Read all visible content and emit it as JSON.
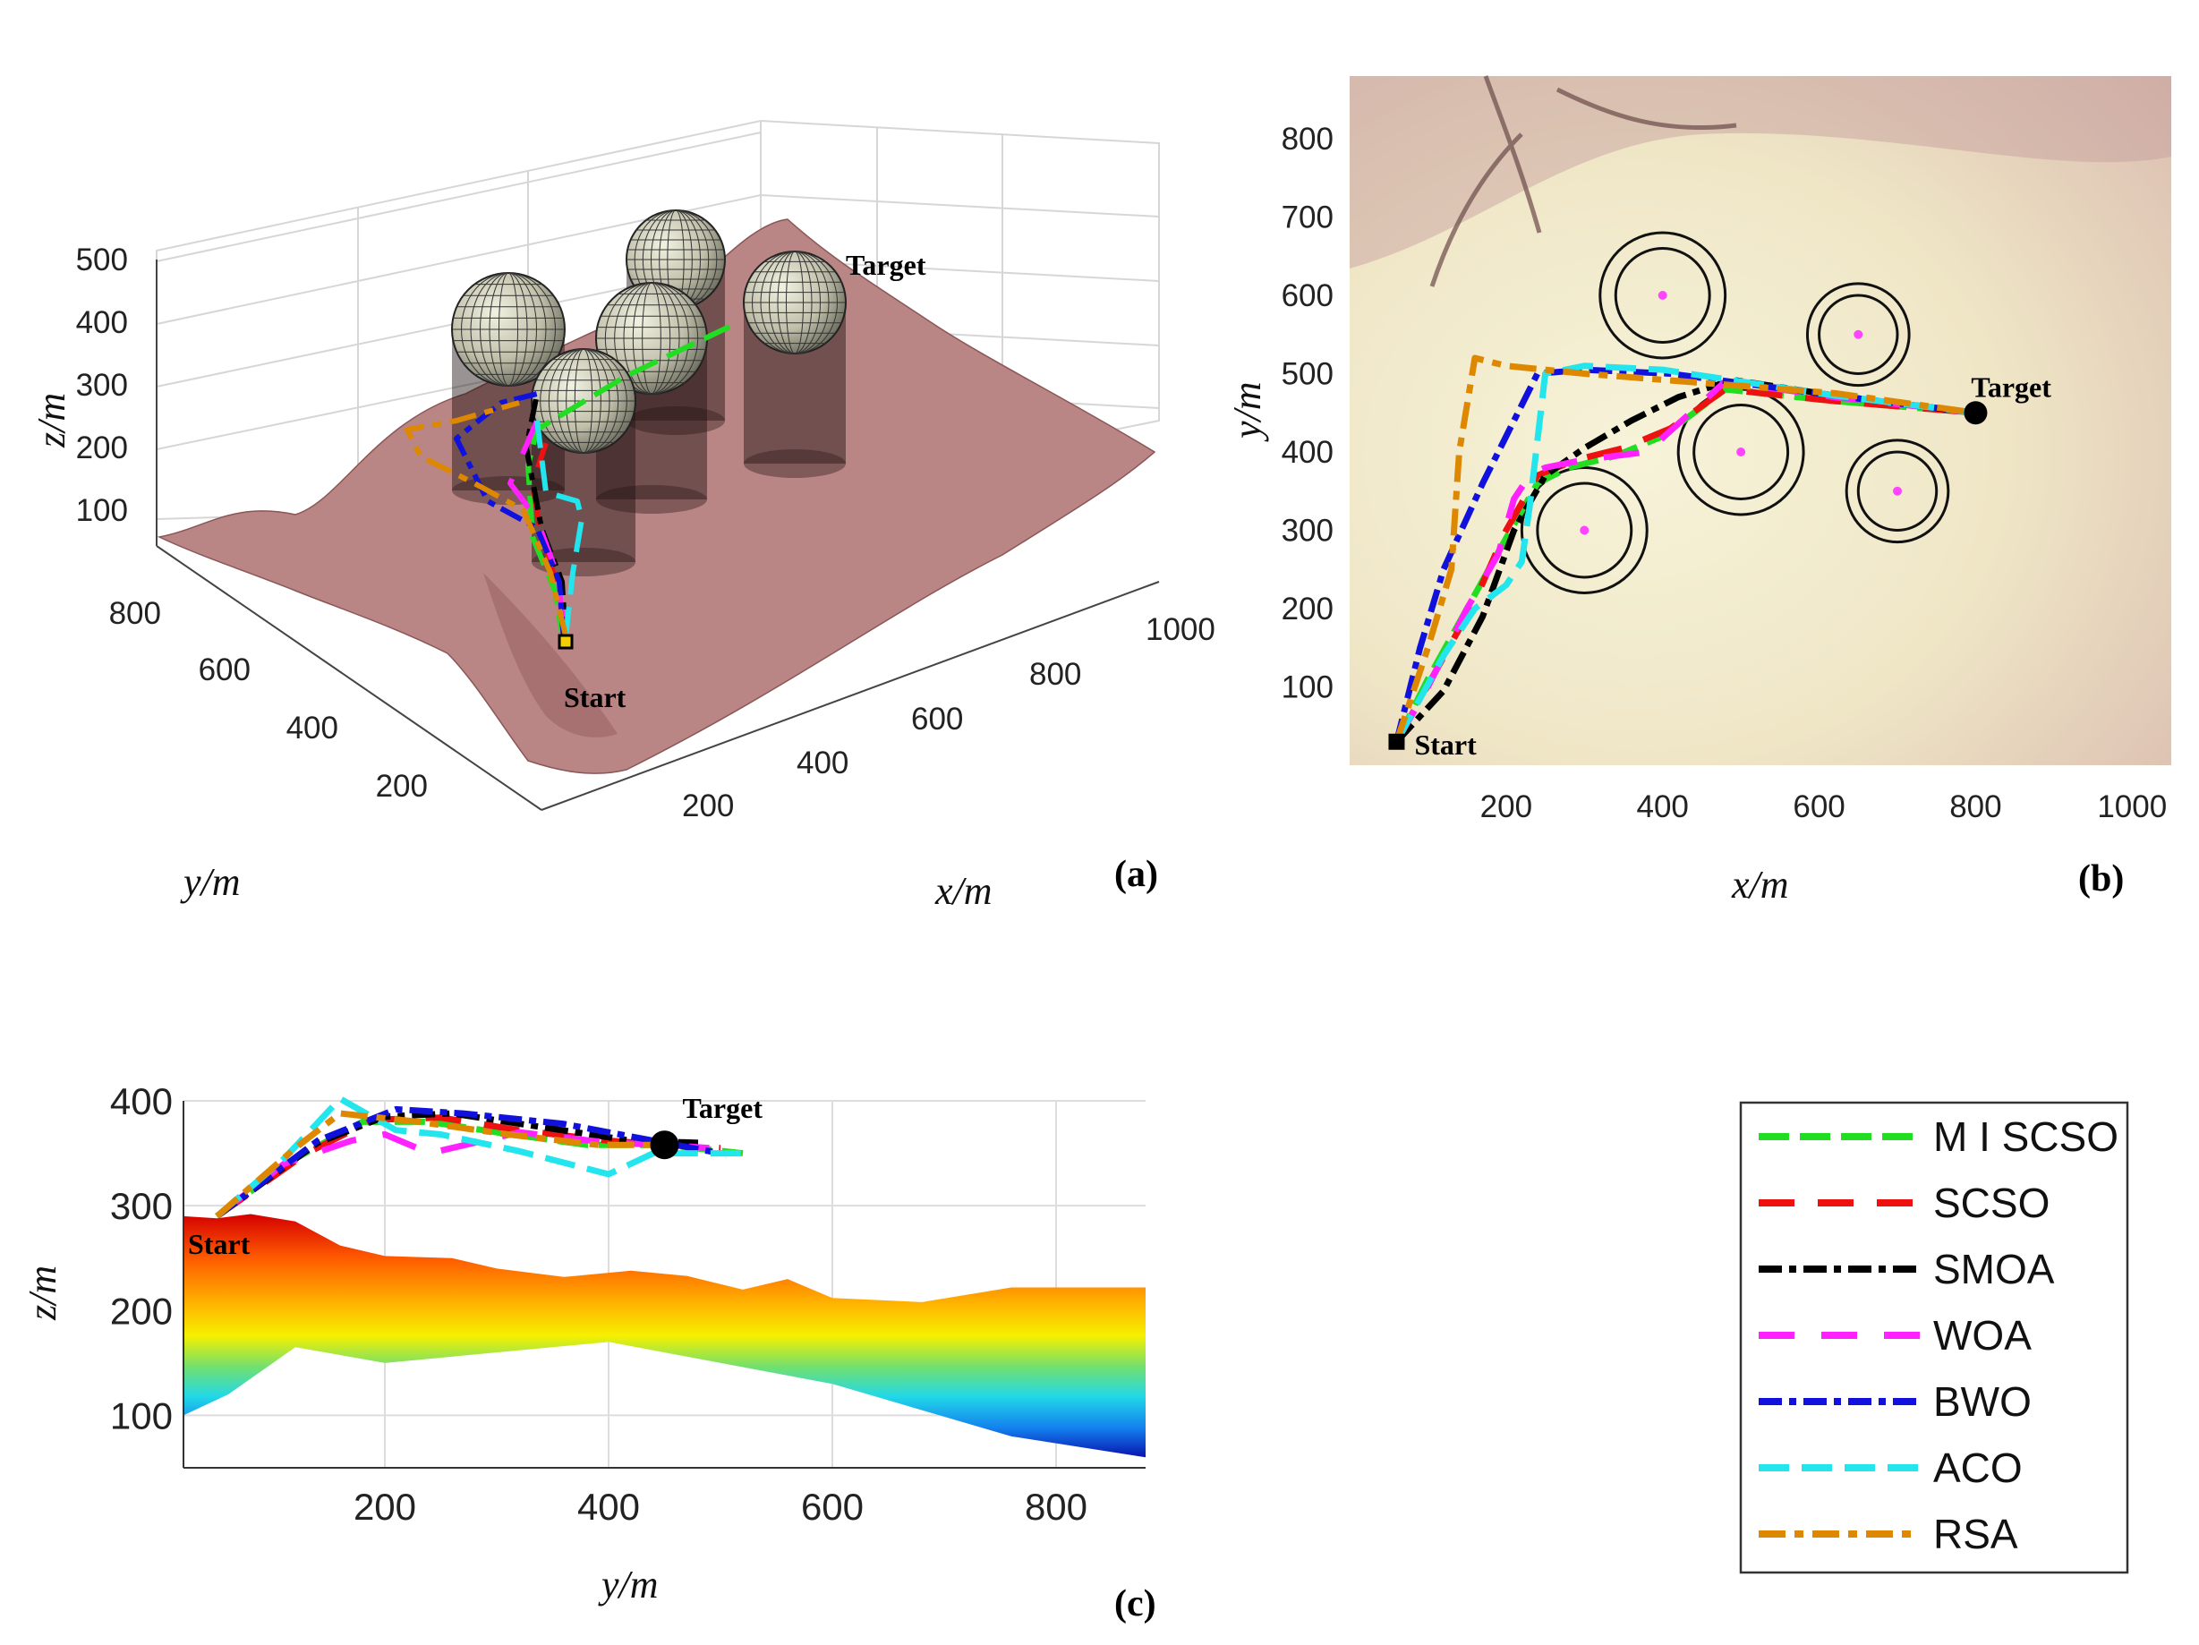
{
  "figure": {
    "panel_labels": [
      "(a)",
      "(b)",
      "(c)"
    ],
    "annotations": {
      "start": "Start",
      "target": "Target"
    }
  },
  "colors": {
    "MISCSO": "#22dd22",
    "SCSO": "#ee1111",
    "SMOA": "#000000",
    "WOA": "#ff22ff",
    "BWO": "#1111dd",
    "ACO": "#22e5ee",
    "RSA": "#dd8800",
    "terrain3d": "#b97d7d",
    "terrain2d": "#ede4c4"
  },
  "legend": {
    "placement": "bottom-right",
    "entries": [
      "M I SCSO",
      "SCSO",
      "SMOA",
      "WOA",
      "BWO",
      "ACO",
      "RSA"
    ]
  },
  "chart_data": [
    {
      "id": "a",
      "type": "line",
      "subtype": "3d-surface-with-paths",
      "xlabel": "x/m",
      "ylabel": "y/m",
      "zlabel": "z/m",
      "xticks": [
        "200",
        "400",
        "600",
        "800",
        "1000"
      ],
      "yticks": [
        "200",
        "400",
        "600",
        "800"
      ],
      "zticks": [
        "100",
        "200",
        "300",
        "400",
        "500"
      ],
      "xlim": [
        100,
        1000
      ],
      "ylim": [
        100,
        900
      ],
      "zlim": [
        50,
        520
      ],
      "grid": true,
      "start": {
        "x": 60,
        "y": 30
      },
      "target": {
        "x": 800,
        "y": 450
      },
      "obstacles": [
        {
          "x": 300,
          "y": 300,
          "radius": 80
        },
        {
          "x": 400,
          "y": 600,
          "radius": 80
        },
        {
          "x": 500,
          "y": 400,
          "radius": 80
        },
        {
          "x": 650,
          "y": 550,
          "radius": 65
        },
        {
          "x": 700,
          "y": 350,
          "radius": 65
        }
      ]
    },
    {
      "id": "b",
      "type": "line",
      "subtype": "top-view-paths",
      "xlabel": "x/m",
      "ylabel": "y/m",
      "xticks": [
        200,
        400,
        600,
        800,
        1000
      ],
      "yticks": [
        100,
        200,
        300,
        400,
        500,
        600,
        700,
        800
      ],
      "xlim": [
        0,
        1050
      ],
      "ylim": [
        0,
        880
      ],
      "start": {
        "x": 60,
        "y": 30
      },
      "target": {
        "x": 800,
        "y": 450
      },
      "obstacles": [
        {
          "x": 300,
          "y": 300,
          "r_outer": 80,
          "r_inner": 60
        },
        {
          "x": 400,
          "y": 600,
          "r_outer": 80,
          "r_inner": 60
        },
        {
          "x": 500,
          "y": 400,
          "r_outer": 80,
          "r_inner": 60
        },
        {
          "x": 650,
          "y": 550,
          "r_outer": 65,
          "r_inner": 50
        },
        {
          "x": 700,
          "y": 350,
          "r_outer": 65,
          "r_inner": 50
        }
      ],
      "series": [
        {
          "name": "MISCSO",
          "x": [
            60,
            100,
            150,
            200,
            240,
            280,
            340,
            400,
            480,
            620,
            800
          ],
          "y": [
            30,
            110,
            200,
            290,
            360,
            380,
            395,
            420,
            480,
            465,
            450
          ]
        },
        {
          "name": "SCSO",
          "x": [
            60,
            110,
            160,
            200,
            240,
            290,
            350,
            410,
            480,
            620,
            800
          ],
          "y": [
            30,
            120,
            210,
            300,
            370,
            390,
            405,
            430,
            480,
            465,
            450
          ]
        },
        {
          "name": "SMOA",
          "x": [
            60,
            120,
            170,
            210,
            250,
            300,
            360,
            420,
            490,
            620,
            800
          ],
          "y": [
            30,
            95,
            190,
            300,
            370,
            405,
            440,
            470,
            492,
            472,
            450
          ]
        },
        {
          "name": "WOA",
          "x": [
            60,
            100,
            150,
            190,
            210,
            230,
            250,
            300,
            380,
            480,
            620,
            800
          ],
          "y": [
            30,
            100,
            200,
            270,
            340,
            370,
            380,
            390,
            400,
            490,
            470,
            450
          ]
        },
        {
          "name": "BWO",
          "x": [
            60,
            90,
            120,
            170,
            200,
            220,
            240,
            300,
            410,
            620,
            800
          ],
          "y": [
            30,
            150,
            250,
            360,
            420,
            460,
            500,
            505,
            500,
            472,
            450
          ]
        },
        {
          "name": "ACO",
          "x": [
            60,
            120,
            160,
            200,
            220,
            230,
            250,
            300,
            400,
            620,
            800
          ],
          "y": [
            30,
            140,
            200,
            230,
            260,
            330,
            500,
            510,
            505,
            472,
            450
          ]
        },
        {
          "name": "RSA",
          "x": [
            60,
            100,
            130,
            140,
            160,
            200,
            300,
            620,
            800
          ],
          "y": [
            30,
            150,
            250,
            400,
            520,
            510,
            500,
            475,
            450
          ]
        }
      ]
    },
    {
      "id": "c",
      "type": "line",
      "subtype": "side-view-paths",
      "xlabel": "y/m",
      "ylabel": "z/m",
      "xticks": [
        200,
        400,
        600,
        800
      ],
      "yticks": [
        100,
        200,
        300,
        400
      ],
      "xlim": [
        20,
        880
      ],
      "ylim": [
        50,
        400
      ],
      "grid": true,
      "start": {
        "x": 50,
        "z": 290
      },
      "target": {
        "x": 450,
        "z": 358
      },
      "terrain": {
        "y": [
          20,
          50,
          80,
          120,
          160,
          200,
          260,
          300,
          360,
          420,
          470,
          520,
          560,
          600,
          680,
          760,
          840,
          880
        ],
        "z": [
          290,
          288,
          292,
          285,
          262,
          252,
          250,
          240,
          232,
          238,
          233,
          220,
          230,
          212,
          208,
          222,
          222,
          222
        ]
      },
      "series": [
        {
          "name": "MISCSO",
          "x": [
            50,
            120,
            180,
            240,
            300,
            380,
            450,
            520
          ],
          "y": [
            290,
            345,
            380,
            380,
            370,
            358,
            358,
            350
          ]
        },
        {
          "name": "SCSO",
          "x": [
            50,
            130,
            190,
            250,
            320,
            400,
            450,
            500
          ],
          "y": [
            290,
            350,
            382,
            384,
            372,
            362,
            358,
            355
          ]
        },
        {
          "name": "SMOA",
          "x": [
            50,
            140,
            200,
            260,
            340,
            420,
            480
          ],
          "y": [
            290,
            360,
            385,
            388,
            375,
            362,
            360
          ]
        },
        {
          "name": "WOA",
          "x": [
            50,
            110,
            170,
            200,
            240,
            320,
            400,
            450,
            490
          ],
          "y": [
            290,
            340,
            362,
            368,
            350,
            370,
            360,
            358,
            355
          ]
        },
        {
          "name": "BWO",
          "x": [
            50,
            140,
            210,
            270,
            360,
            440,
            500
          ],
          "y": [
            290,
            362,
            392,
            388,
            378,
            362,
            350
          ]
        },
        {
          "name": "ACO",
          "x": [
            50,
            110,
            160,
            210,
            250,
            320,
            400,
            440,
            520
          ],
          "y": [
            290,
            345,
            402,
            372,
            368,
            352,
            330,
            350,
            350
          ]
        },
        {
          "name": "RSA",
          "x": [
            50,
            120,
            160,
            230,
            310,
            390,
            450
          ],
          "y": [
            290,
            355,
            388,
            380,
            368,
            358,
            358
          ]
        }
      ]
    }
  ]
}
